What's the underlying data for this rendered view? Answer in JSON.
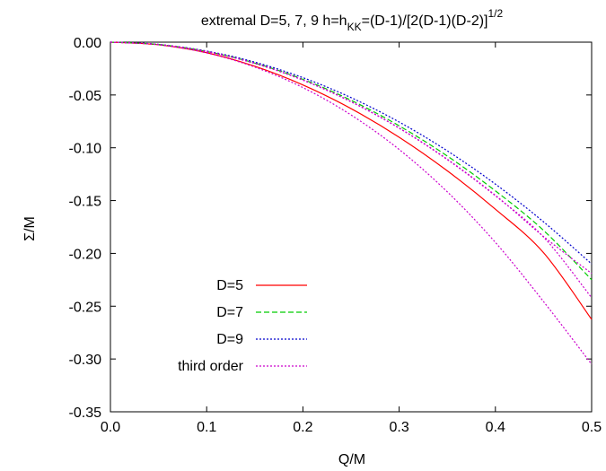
{
  "chart_data": {
    "type": "line",
    "title": {
      "prefix": "extremal D=5, 7, 9 h=h",
      "subscript": "KK",
      "middle": "=(D-1)/[2(D-1)(D-2)]",
      "superscript": "1/2"
    },
    "xlabel": "Q/M",
    "ylabel": "Σ/M",
    "xlim": [
      0.0,
      0.5
    ],
    "ylim": [
      -0.35,
      0.0
    ],
    "xticks": [
      0.0,
      0.1,
      0.2,
      0.3,
      0.4,
      0.5
    ],
    "xtick_labels": [
      "0.0",
      "0.1",
      "0.2",
      "0.3",
      "0.4",
      "0.5"
    ],
    "yticks": [
      0.0,
      -0.05,
      -0.1,
      -0.15,
      -0.2,
      -0.25,
      -0.3,
      -0.35
    ],
    "ytick_labels": [
      "0.00",
      "-0.05",
      "-0.10",
      "-0.15",
      "-0.20",
      "-0.25",
      "-0.30",
      "-0.35"
    ],
    "grid": false,
    "legend_position": "bottom-left",
    "series": [
      {
        "name": "D=5",
        "color": "#ff0000",
        "dash": "solid",
        "x": [
          0.0,
          0.05,
          0.1,
          0.15,
          0.2,
          0.25,
          0.3,
          0.35,
          0.4,
          0.45,
          0.5
        ],
        "y": [
          0.0,
          -0.0025,
          -0.01,
          -0.0228,
          -0.0405,
          -0.0629,
          -0.09,
          -0.1218,
          -0.1582,
          -0.1993,
          -0.2625
        ]
      },
      {
        "name": "D=7",
        "color": "#00cc00",
        "dash": "dashed",
        "x": [
          0.0,
          0.05,
          0.1,
          0.15,
          0.2,
          0.25,
          0.3,
          0.35,
          0.4,
          0.45,
          0.5
        ],
        "y": [
          0.0,
          -0.0022,
          -0.0088,
          -0.0198,
          -0.0352,
          -0.055,
          -0.0792,
          -0.1078,
          -0.1408,
          -0.1782,
          -0.225
        ]
      },
      {
        "name": "D=9",
        "color": "#0000cc",
        "dash": "dotted",
        "x": [
          0.0,
          0.05,
          0.1,
          0.15,
          0.2,
          0.25,
          0.3,
          0.35,
          0.4,
          0.45,
          0.5
        ],
        "y": [
          0.0,
          -0.0021,
          -0.0084,
          -0.0189,
          -0.0336,
          -0.0525,
          -0.0756,
          -0.1029,
          -0.1344,
          -0.1701,
          -0.21
        ]
      },
      {
        "name": "",
        "color": "#cc00cc",
        "dash": "dotted",
        "x": [
          0.0,
          0.05,
          0.1,
          0.15,
          0.2,
          0.25,
          0.3,
          0.35,
          0.4,
          0.45,
          0.5
        ],
        "y": [
          0.0,
          -0.0022,
          -0.0089,
          -0.0202,
          -0.036,
          -0.0565,
          -0.0815,
          -0.1112,
          -0.1455,
          -0.1845,
          -0.242
        ]
      },
      {
        "name": "",
        "color": "#cc00cc",
        "dash": "dotted",
        "x": [
          0.0,
          0.05,
          0.1,
          0.15,
          0.2,
          0.25,
          0.3,
          0.35,
          0.4,
          0.45,
          0.5
        ],
        "y": [
          0.0,
          -0.0022,
          -0.0088,
          -0.02,
          -0.0358,
          -0.0562,
          -0.0812,
          -0.1108,
          -0.145,
          -0.184,
          -0.219
        ]
      },
      {
        "name": "third order",
        "color": "#cc00cc",
        "dash": "dotted",
        "x": [
          0.0,
          0.05,
          0.1,
          0.15,
          0.2,
          0.25,
          0.3,
          0.35,
          0.4,
          0.45,
          0.5
        ],
        "y": [
          0.0,
          -0.0025,
          -0.0102,
          -0.0236,
          -0.043,
          -0.0689,
          -0.1016,
          -0.1417,
          -0.1896,
          -0.2456,
          -0.305
        ]
      }
    ]
  }
}
